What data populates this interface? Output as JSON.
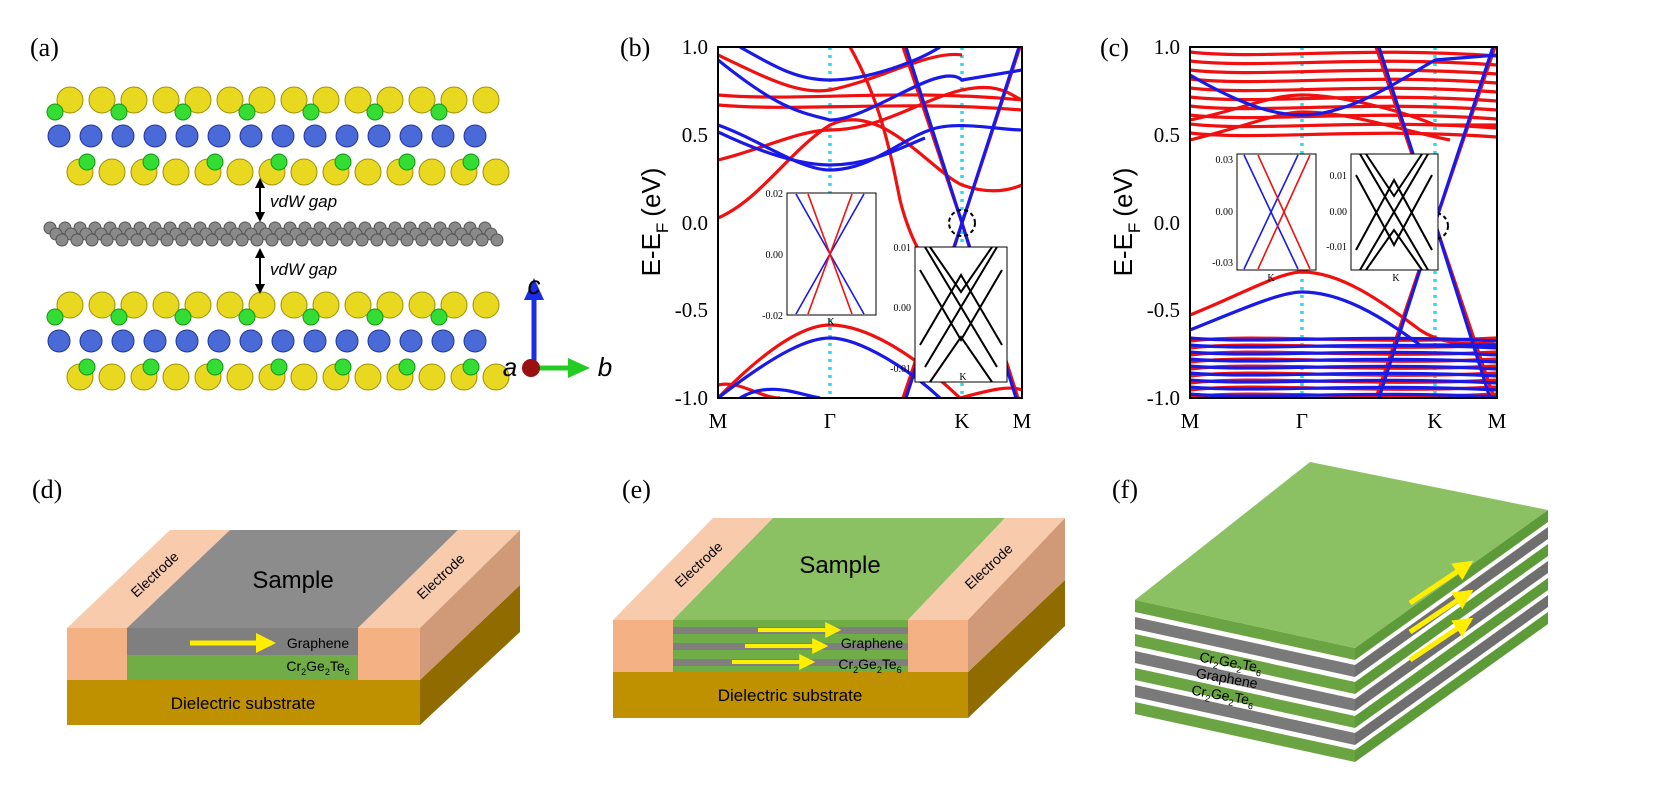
{
  "panels": {
    "a": {
      "label": "(a)",
      "gap_labels": [
        "vdW gap",
        "vdW gap"
      ],
      "axes": [
        "a",
        "b",
        "c"
      ]
    },
    "b": {
      "label": "(b)",
      "y_label": {
        "main": "E-E",
        "sub": "F",
        "unit": "(eV)"
      },
      "yticks": [
        "1.0",
        "0.5",
        "0.0",
        "-0.5",
        "-1.0"
      ],
      "xticks": [
        "M",
        "Γ",
        "K",
        "M"
      ],
      "insets": [
        {
          "yticks": [
            "0.02",
            "0.00",
            "-0.02"
          ],
          "xtick": "K"
        },
        {
          "yticks": [
            "0.01",
            "0.00",
            "-0.01"
          ],
          "xtick": "K"
        }
      ]
    },
    "c": {
      "label": "(c)",
      "y_label": {
        "main": "E-E",
        "sub": "F",
        "unit": "(eV)"
      },
      "yticks": [
        "1.0",
        "0.5",
        "0.0",
        "-0.5",
        "-1.0"
      ],
      "xticks": [
        "M",
        "Γ",
        "K",
        "M"
      ],
      "insets": [
        {
          "yticks": [
            "0.03",
            "0.00",
            "-0.03"
          ],
          "xtick": "K"
        },
        {
          "yticks": [
            "0.01",
            "0.00",
            "-0.01"
          ],
          "xtick": "K"
        }
      ]
    },
    "d": {
      "label": "(d)",
      "top": "Sample",
      "electrodes": [
        "Electrode",
        "Electrode"
      ],
      "graphene": "Graphene",
      "cgt": [
        "Cr",
        "2",
        "Ge",
        "2",
        "Te",
        "6"
      ],
      "substrate": "Dielectric substrate"
    },
    "e": {
      "label": "(e)",
      "top": "Sample",
      "electrodes": [
        "Electrode",
        "Electrode"
      ],
      "graphene": "Graphene",
      "cgt": [
        "Cr",
        "2",
        "Ge",
        "2",
        "Te",
        "6"
      ],
      "substrate": "Dielectric substrate"
    },
    "f": {
      "label": "(f)",
      "cgt_top": [
        "Cr",
        "2",
        "Ge",
        "2",
        "Te",
        "6"
      ],
      "graphene": "Graphene",
      "cgt_bottom": [
        "Cr",
        "2",
        "Ge",
        "2",
        "Te",
        "6"
      ]
    }
  }
}
